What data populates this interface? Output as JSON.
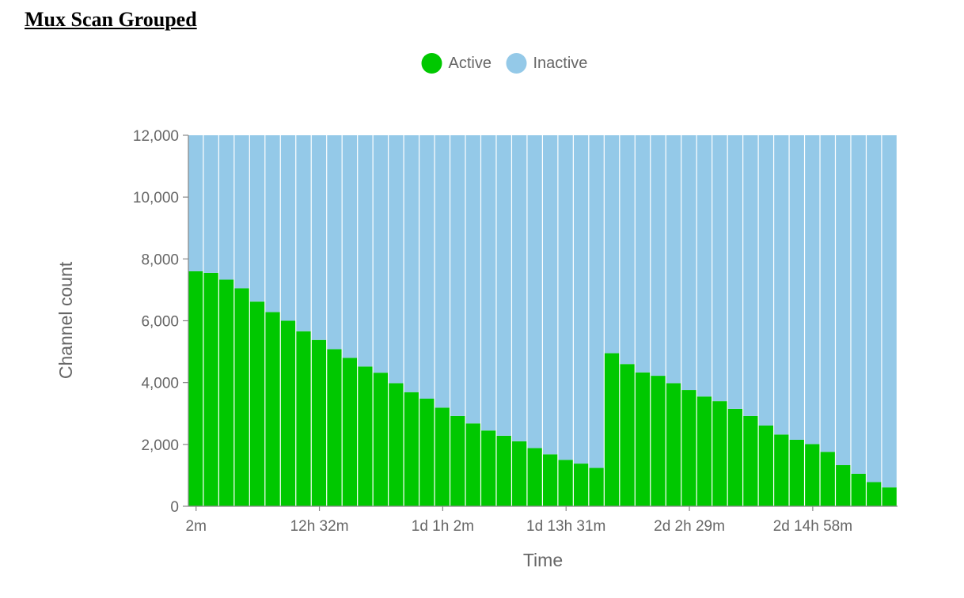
{
  "page": {
    "title": "Mux Scan Grouped"
  },
  "chart_data": {
    "type": "bar",
    "stacked": true,
    "title": "",
    "xlabel": "Time",
    "ylabel": "Channel count",
    "ylim": [
      0,
      12000
    ],
    "yticks": [
      0,
      2000,
      4000,
      6000,
      8000,
      10000,
      12000
    ],
    "ytick_labels": [
      "0",
      "2,000",
      "4,000",
      "6,000",
      "8,000",
      "10,000",
      "12,000"
    ],
    "x_tick_labels": [
      {
        "index": 0,
        "label": "2m"
      },
      {
        "index": 8,
        "label": "12h 32m"
      },
      {
        "index": 16,
        "label": "1d 1h 2m"
      },
      {
        "index": 24,
        "label": "1d 13h 31m"
      },
      {
        "index": 32,
        "label": "2d 2h 29m"
      },
      {
        "index": 40,
        "label": "2d 14h 58m"
      }
    ],
    "bar_count": 46,
    "legend_position": "top",
    "series": [
      {
        "name": "Active",
        "color": "#00c800",
        "values": [
          7600,
          7550,
          7330,
          7050,
          6620,
          6280,
          6000,
          5660,
          5380,
          5080,
          4800,
          4520,
          4320,
          3980,
          3690,
          3480,
          3190,
          2920,
          2680,
          2450,
          2280,
          2100,
          1880,
          1680,
          1500,
          1380,
          1240,
          4950,
          4600,
          4330,
          4220,
          3980,
          3760,
          3550,
          3400,
          3150,
          2920,
          2610,
          2320,
          2150,
          2010,
          1760,
          1330,
          1050,
          780,
          610
        ]
      },
      {
        "name": "Inactive",
        "color": "#94c9e8",
        "values": [
          4400,
          4450,
          4670,
          4950,
          5380,
          5720,
          6000,
          6340,
          6620,
          6920,
          7200,
          7480,
          7680,
          8020,
          8310,
          8520,
          8810,
          9080,
          9320,
          9550,
          9720,
          9900,
          10120,
          10320,
          10500,
          10620,
          10760,
          7050,
          7400,
          7670,
          7780,
          8020,
          8240,
          8450,
          8600,
          8850,
          9080,
          9390,
          9680,
          9850,
          9990,
          10240,
          10670,
          10950,
          11220,
          11390
        ]
      }
    ]
  }
}
